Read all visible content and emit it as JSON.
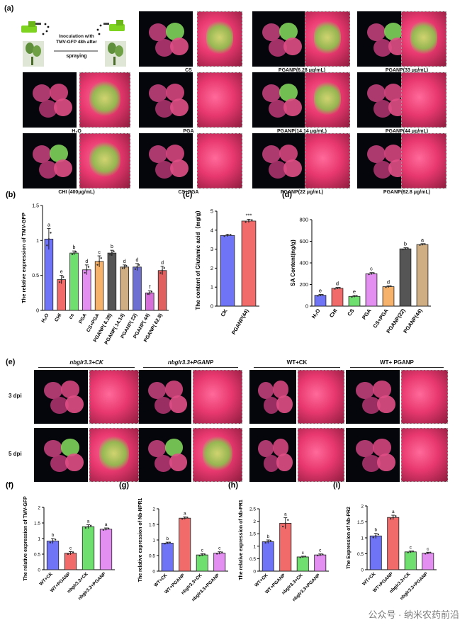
{
  "panel_a": {
    "letter": "(a)",
    "inoculation_text": "Inoculation with TMV-GFP 48h after",
    "spraying_text": "spraying",
    "captions": {
      "cs": "CS",
      "pganp_6_28": "PGANP(6.28 μg/mL)",
      "pganp_33": "PGANP(33 μg/mL)",
      "h2o": "H₂O",
      "pga": "PGA",
      "pganp_14_14": "PGANP(14.14 μg/mL)",
      "pganp_44": "PGANP(44 μg/mL)",
      "chi": "CHI (400μg/mL)",
      "cs_pga": "CS+PGA",
      "pganp_22": "PGANP(22 μg/mL)",
      "pganp_62_8": "PGANP(62.8 μg/mL)"
    }
  },
  "panel_e": {
    "letter": "(e)",
    "groups": [
      "nbglr3.3+CK",
      "nbglr3.3+PGANP",
      "WT+CK",
      "WT+ PGANP"
    ],
    "rows": [
      "3 dpi",
      "5 dpi"
    ]
  },
  "chart_data": [
    {
      "id": "b",
      "letter": "(b)",
      "type": "bar",
      "ylabel": "The relative expression of TMV-GFP",
      "categories": [
        "H₂O",
        "CHI",
        "cs",
        "PGA",
        "CS+PGA",
        "PGANP( 6.28)",
        "PGANP( 14.14)",
        "PGANP( 22)",
        "PGANP( 44)",
        "PGANP( 62.8)"
      ],
      "values": [
        1.02,
        0.44,
        0.82,
        0.58,
        0.7,
        0.82,
        0.62,
        0.62,
        0.25,
        0.57
      ],
      "errors": [
        0.15,
        0.06,
        0.03,
        0.07,
        0.08,
        0.04,
        0.03,
        0.05,
        0.03,
        0.06
      ],
      "letters": [
        "a",
        "e",
        "b",
        "d",
        "c",
        "b",
        "d",
        "d",
        "f",
        "d"
      ],
      "colors": [
        "#6f73f5",
        "#f26b6b",
        "#6fe06f",
        "#e38ff2",
        "#f6b26b",
        "#555555",
        "#cfae84",
        "#6d6fd1",
        "#d76fd9",
        "#e06060"
      ],
      "ylim": [
        0,
        1.5
      ],
      "yticks": [
        0,
        0.5,
        1.0,
        1.5
      ]
    },
    {
      "id": "c",
      "letter": "(c)",
      "type": "bar",
      "ylabel": "The content of Glutamic acid（mg/g）",
      "categories": [
        "CK",
        "PGANP(44)"
      ],
      "values": [
        3.72,
        4.48
      ],
      "errors": [
        0.06,
        0.09
      ],
      "letters": [
        "",
        "***"
      ],
      "colors": [
        "#6f73f5",
        "#f26b6b"
      ],
      "ylim": [
        0,
        5
      ],
      "yticks": [
        0,
        1,
        2,
        3,
        4,
        5
      ]
    },
    {
      "id": "d",
      "letter": "(d)",
      "type": "bar",
      "ylabel": "SA Content(ng/g)",
      "categories": [
        "H₂O",
        "CHI",
        "CS",
        "PGA",
        "CS+PGA",
        "PGANP(22)",
        "PGANP(44)"
      ],
      "values": [
        100,
        165,
        90,
        300,
        180,
        530,
        570
      ],
      "errors": [
        8,
        8,
        8,
        10,
        8,
        10,
        8
      ],
      "letters": [
        "e",
        "d",
        "e",
        "c",
        "d",
        "b",
        "a"
      ],
      "colors": [
        "#6f73f5",
        "#f26b6b",
        "#6fe06f",
        "#e38ff2",
        "#f6b26b",
        "#555555",
        "#cfae84"
      ],
      "ylim": [
        0,
        800
      ],
      "yticks": [
        0,
        200,
        400,
        600,
        800
      ]
    },
    {
      "id": "f",
      "letter": "(f)",
      "type": "bar",
      "ylabel": "The relative expression of TMV-GFP",
      "categories": [
        "WT+CK",
        "WT+PGANP",
        "nbglr3.3+CK",
        "nbglr3.3+PGANP"
      ],
      "values": [
        0.92,
        0.53,
        1.38,
        1.3
      ],
      "errors": [
        0.08,
        0.05,
        0.06,
        0.04
      ],
      "letters": [
        "b",
        "c",
        "a",
        "a"
      ],
      "colors": [
        "#6f73f5",
        "#f26b6b",
        "#6fe06f",
        "#e38ff2"
      ],
      "ylim": [
        0,
        2.0
      ],
      "yticks": [
        0,
        0.5,
        1.0,
        1.5,
        2.0
      ]
    },
    {
      "id": "g",
      "letter": "(g)",
      "type": "bar",
      "ylabel": "The relative expression of Nb-NPR1",
      "categories": [
        "WT+CK",
        "WT+PGANP",
        "nbglr3.3+CK",
        "nbglr3.3+PGANP"
      ],
      "values": [
        0.9,
        1.7,
        0.52,
        0.58
      ],
      "errors": [
        0.03,
        0.04,
        0.04,
        0.04
      ],
      "letters": [
        "b",
        "a",
        "c",
        "c"
      ],
      "colors": [
        "#6f73f5",
        "#f26b6b",
        "#6fe06f",
        "#e38ff2"
      ],
      "ylim": [
        0,
        2.0
      ],
      "yticks": [
        0,
        0.5,
        1.0,
        1.5,
        2.0
      ]
    },
    {
      "id": "h",
      "letter": "(h)",
      "type": "bar",
      "ylabel": "The relative expression of Nb-PR1",
      "categories": [
        "WT+CK",
        "WT+PGANP",
        "nbglr3.3+CK",
        "nbglr3.3+PGANP"
      ],
      "values": [
        1.18,
        1.92,
        0.57,
        0.65
      ],
      "errors": [
        0.07,
        0.22,
        0.03,
        0.04
      ],
      "letters": [
        "b",
        "a",
        "c",
        "c"
      ],
      "colors": [
        "#6f73f5",
        "#f26b6b",
        "#6fe06f",
        "#e38ff2"
      ],
      "ylim": [
        0,
        2.5
      ],
      "yticks": [
        0,
        0.5,
        1.0,
        1.5,
        2.0,
        2.5
      ]
    },
    {
      "id": "i",
      "letter": "(i)",
      "type": "bar",
      "ylabel": "The Expression of Nb-PR2",
      "categories": [
        "WT+CK",
        "WT+PGANP",
        "nbglr3.3+CK",
        "nbglr3.3+PGANP"
      ],
      "values": [
        1.06,
        1.64,
        0.56,
        0.52
      ],
      "errors": [
        0.08,
        0.07,
        0.03,
        0.03
      ],
      "letters": [
        "b",
        "a",
        "c",
        "c"
      ],
      "colors": [
        "#6f73f5",
        "#f26b6b",
        "#6fe06f",
        "#e38ff2"
      ],
      "ylim": [
        0,
        2.0
      ],
      "yticks": [
        0,
        0.5,
        1.0,
        1.5,
        2.0
      ]
    }
  ],
  "watermark": "公众号 · 纳米农药前沿"
}
